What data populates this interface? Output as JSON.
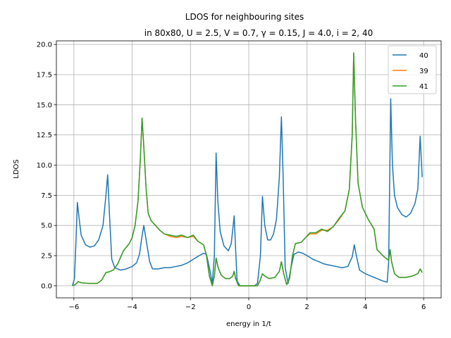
{
  "chart_data": {
    "type": "line",
    "title_line1": "LDOS for neighbouring sites",
    "title_line2": "in 80x80,  U = 2.5, V = 0.7, γ = 0.15, J = 4.0, i = 2, 40",
    "xlabel": "energy in 1/t",
    "ylabel": "LDOS",
    "xlim": [
      -6.6,
      6.6
    ],
    "ylim": [
      -1.0,
      20.3
    ],
    "grid": true,
    "legend_position": "top-right",
    "x_ticks": [
      -6,
      -4,
      -2,
      0,
      2,
      4,
      6
    ],
    "x_tick_labels": [
      "−6",
      "−4",
      "−2",
      "0",
      "2",
      "4",
      "6"
    ],
    "y_ticks": [
      0,
      2.5,
      5,
      7.5,
      10,
      12.5,
      15,
      17.5,
      20
    ],
    "y_tick_labels": [
      "0.0",
      "2.5",
      "5.0",
      "7.5",
      "10.0",
      "12.5",
      "15.0",
      "17.5",
      "20.0"
    ],
    "series": [
      {
        "name": "40",
        "color": "#1f77b4",
        "points": [
          [
            -6.05,
            0.0
          ],
          [
            -5.98,
            0.6
          ],
          [
            -5.93,
            3.5
          ],
          [
            -5.88,
            6.9
          ],
          [
            -5.82,
            5.6
          ],
          [
            -5.75,
            4.2
          ],
          [
            -5.6,
            3.4
          ],
          [
            -5.45,
            3.2
          ],
          [
            -5.3,
            3.3
          ],
          [
            -5.15,
            3.8
          ],
          [
            -5.0,
            5.0
          ],
          [
            -4.9,
            7.5
          ],
          [
            -4.84,
            9.2
          ],
          [
            -4.78,
            6.0
          ],
          [
            -4.7,
            2.2
          ],
          [
            -4.6,
            1.5
          ],
          [
            -4.4,
            1.3
          ],
          [
            -4.2,
            1.4
          ],
          [
            -4.0,
            1.6
          ],
          [
            -3.85,
            1.9
          ],
          [
            -3.75,
            2.6
          ],
          [
            -3.65,
            4.3
          ],
          [
            -3.6,
            5.0
          ],
          [
            -3.5,
            3.5
          ],
          [
            -3.4,
            2.0
          ],
          [
            -3.3,
            1.4
          ],
          [
            -3.1,
            1.4
          ],
          [
            -2.9,
            1.5
          ],
          [
            -2.7,
            1.5
          ],
          [
            -2.5,
            1.6
          ],
          [
            -2.3,
            1.7
          ],
          [
            -2.1,
            1.9
          ],
          [
            -1.9,
            2.2
          ],
          [
            -1.7,
            2.5
          ],
          [
            -1.55,
            2.7
          ],
          [
            -1.45,
            2.6
          ],
          [
            -1.35,
            1.5
          ],
          [
            -1.25,
            0.2
          ],
          [
            -1.18,
            2.5
          ],
          [
            -1.12,
            11.0
          ],
          [
            -1.06,
            7.0
          ],
          [
            -0.98,
            4.5
          ],
          [
            -0.85,
            3.3
          ],
          [
            -0.7,
            2.9
          ],
          [
            -0.6,
            3.5
          ],
          [
            -0.5,
            5.8
          ],
          [
            -0.45,
            3.0
          ],
          [
            -0.4,
            0.4
          ],
          [
            -0.3,
            0.0
          ],
          [
            0.2,
            0.0
          ],
          [
            0.3,
            0.2
          ],
          [
            0.4,
            2.5
          ],
          [
            0.47,
            7.4
          ],
          [
            0.55,
            5.0
          ],
          [
            0.65,
            3.8
          ],
          [
            0.75,
            3.8
          ],
          [
            0.85,
            4.3
          ],
          [
            0.95,
            5.5
          ],
          [
            1.05,
            9.0
          ],
          [
            1.12,
            14.0
          ],
          [
            1.18,
            9.0
          ],
          [
            1.25,
            1.5
          ],
          [
            1.35,
            0.2
          ],
          [
            1.45,
            1.5
          ],
          [
            1.55,
            2.6
          ],
          [
            1.7,
            2.8
          ],
          [
            1.85,
            2.7
          ],
          [
            2.0,
            2.5
          ],
          [
            2.2,
            2.2
          ],
          [
            2.4,
            2.0
          ],
          [
            2.6,
            1.8
          ],
          [
            2.8,
            1.7
          ],
          [
            3.0,
            1.6
          ],
          [
            3.2,
            1.5
          ],
          [
            3.4,
            1.6
          ],
          [
            3.55,
            2.4
          ],
          [
            3.62,
            3.4
          ],
          [
            3.7,
            2.4
          ],
          [
            3.8,
            1.3
          ],
          [
            4.0,
            1.0
          ],
          [
            4.2,
            0.8
          ],
          [
            4.4,
            0.6
          ],
          [
            4.6,
            0.4
          ],
          [
            4.75,
            0.3
          ],
          [
            4.8,
            2.0
          ],
          [
            4.87,
            15.5
          ],
          [
            4.93,
            10.0
          ],
          [
            5.0,
            7.5
          ],
          [
            5.1,
            6.5
          ],
          [
            5.25,
            5.9
          ],
          [
            5.4,
            5.7
          ],
          [
            5.55,
            6.0
          ],
          [
            5.7,
            6.8
          ],
          [
            5.8,
            8.0
          ],
          [
            5.88,
            12.4
          ],
          [
            5.95,
            9.0
          ]
        ]
      },
      {
        "name": "39",
        "color": "#ff7f0e",
        "points": [
          [
            -6.05,
            0.0
          ],
          [
            -5.95,
            0.1
          ],
          [
            -5.85,
            0.35
          ],
          [
            -5.75,
            0.25
          ],
          [
            -5.5,
            0.2
          ],
          [
            -5.2,
            0.2
          ],
          [
            -5.05,
            0.45
          ],
          [
            -4.9,
            1.1
          ],
          [
            -4.8,
            1.15
          ],
          [
            -4.65,
            1.3
          ],
          [
            -4.5,
            1.8
          ],
          [
            -4.3,
            2.9
          ],
          [
            -4.1,
            3.5
          ],
          [
            -4.0,
            4.0
          ],
          [
            -3.9,
            5.0
          ],
          [
            -3.8,
            7.0
          ],
          [
            -3.72,
            10.5
          ],
          [
            -3.66,
            13.9
          ],
          [
            -3.6,
            11.5
          ],
          [
            -3.52,
            8.0
          ],
          [
            -3.45,
            6.0
          ],
          [
            -3.35,
            5.4
          ],
          [
            -3.2,
            5.0
          ],
          [
            -3.05,
            4.6
          ],
          [
            -2.9,
            4.3
          ],
          [
            -2.7,
            4.1
          ],
          [
            -2.5,
            4.0
          ],
          [
            -2.3,
            4.1
          ],
          [
            -2.1,
            4.0
          ],
          [
            -1.9,
            4.1
          ],
          [
            -1.75,
            3.7
          ],
          [
            -1.55,
            3.4
          ],
          [
            -1.45,
            2.5
          ],
          [
            -1.35,
            0.8
          ],
          [
            -1.25,
            0.0
          ],
          [
            -1.18,
            0.8
          ],
          [
            -1.12,
            2.3
          ],
          [
            -1.05,
            1.5
          ],
          [
            -0.95,
            0.9
          ],
          [
            -0.8,
            0.6
          ],
          [
            -0.65,
            0.6
          ],
          [
            -0.55,
            0.8
          ],
          [
            -0.5,
            1.2
          ],
          [
            -0.45,
            0.6
          ],
          [
            -0.35,
            0.0
          ],
          [
            0.3,
            0.0
          ],
          [
            0.4,
            0.5
          ],
          [
            0.47,
            1.0
          ],
          [
            0.55,
            0.8
          ],
          [
            0.7,
            0.6
          ],
          [
            0.9,
            0.7
          ],
          [
            1.05,
            1.2
          ],
          [
            1.12,
            2.0
          ],
          [
            1.2,
            1.0
          ],
          [
            1.3,
            0.1
          ],
          [
            1.4,
            0.6
          ],
          [
            1.5,
            2.5
          ],
          [
            1.6,
            3.5
          ],
          [
            1.8,
            3.6
          ],
          [
            1.95,
            4.0
          ],
          [
            2.1,
            4.3
          ],
          [
            2.3,
            4.3
          ],
          [
            2.5,
            4.6
          ],
          [
            2.7,
            4.6
          ],
          [
            2.9,
            4.9
          ],
          [
            3.1,
            5.5
          ],
          [
            3.3,
            6.2
          ],
          [
            3.45,
            8.0
          ],
          [
            3.55,
            12.5
          ],
          [
            3.6,
            19.3
          ],
          [
            3.66,
            14.0
          ],
          [
            3.75,
            8.5
          ],
          [
            3.9,
            6.5
          ],
          [
            4.1,
            5.5
          ],
          [
            4.3,
            4.7
          ],
          [
            4.4,
            3.0
          ],
          [
            4.6,
            2.5
          ],
          [
            4.8,
            2.1
          ],
          [
            4.85,
            3.0
          ],
          [
            4.9,
            2.0
          ],
          [
            5.0,
            1.0
          ],
          [
            5.15,
            0.7
          ],
          [
            5.4,
            0.7
          ],
          [
            5.6,
            0.8
          ],
          [
            5.8,
            1.0
          ],
          [
            5.88,
            1.4
          ],
          [
            5.95,
            1.1
          ]
        ]
      },
      {
        "name": "41",
        "color": "#2ca02c",
        "points": [
          [
            -6.05,
            0.0
          ],
          [
            -5.95,
            0.1
          ],
          [
            -5.85,
            0.35
          ],
          [
            -5.75,
            0.25
          ],
          [
            -5.5,
            0.2
          ],
          [
            -5.2,
            0.2
          ],
          [
            -5.05,
            0.45
          ],
          [
            -4.9,
            1.1
          ],
          [
            -4.8,
            1.15
          ],
          [
            -4.65,
            1.3
          ],
          [
            -4.5,
            1.8
          ],
          [
            -4.3,
            2.9
          ],
          [
            -4.1,
            3.5
          ],
          [
            -4.0,
            4.0
          ],
          [
            -3.9,
            5.0
          ],
          [
            -3.8,
            7.0
          ],
          [
            -3.72,
            10.5
          ],
          [
            -3.66,
            13.9
          ],
          [
            -3.6,
            11.5
          ],
          [
            -3.52,
            8.0
          ],
          [
            -3.45,
            6.0
          ],
          [
            -3.35,
            5.4
          ],
          [
            -3.2,
            5.0
          ],
          [
            -3.05,
            4.6
          ],
          [
            -2.9,
            4.3
          ],
          [
            -2.7,
            4.2
          ],
          [
            -2.5,
            4.1
          ],
          [
            -2.3,
            4.2
          ],
          [
            -2.1,
            4.0
          ],
          [
            -1.9,
            4.2
          ],
          [
            -1.75,
            3.7
          ],
          [
            -1.55,
            3.4
          ],
          [
            -1.45,
            2.5
          ],
          [
            -1.35,
            0.8
          ],
          [
            -1.25,
            0.0
          ],
          [
            -1.18,
            0.8
          ],
          [
            -1.12,
            2.3
          ],
          [
            -1.05,
            1.5
          ],
          [
            -0.95,
            0.9
          ],
          [
            -0.8,
            0.6
          ],
          [
            -0.65,
            0.6
          ],
          [
            -0.55,
            0.8
          ],
          [
            -0.5,
            1.2
          ],
          [
            -0.45,
            0.6
          ],
          [
            -0.35,
            0.0
          ],
          [
            0.3,
            0.0
          ],
          [
            0.4,
            0.5
          ],
          [
            0.47,
            1.0
          ],
          [
            0.55,
            0.8
          ],
          [
            0.7,
            0.6
          ],
          [
            0.9,
            0.7
          ],
          [
            1.05,
            1.2
          ],
          [
            1.12,
            2.0
          ],
          [
            1.2,
            1.0
          ],
          [
            1.3,
            0.1
          ],
          [
            1.4,
            0.6
          ],
          [
            1.5,
            2.5
          ],
          [
            1.6,
            3.5
          ],
          [
            1.8,
            3.6
          ],
          [
            1.95,
            4.0
          ],
          [
            2.1,
            4.4
          ],
          [
            2.3,
            4.4
          ],
          [
            2.5,
            4.7
          ],
          [
            2.7,
            4.5
          ],
          [
            2.9,
            4.9
          ],
          [
            3.1,
            5.6
          ],
          [
            3.3,
            6.2
          ],
          [
            3.45,
            8.0
          ],
          [
            3.55,
            12.5
          ],
          [
            3.6,
            19.3
          ],
          [
            3.66,
            14.0
          ],
          [
            3.75,
            8.5
          ],
          [
            3.9,
            6.5
          ],
          [
            4.1,
            5.5
          ],
          [
            4.3,
            4.7
          ],
          [
            4.4,
            3.0
          ],
          [
            4.6,
            2.5
          ],
          [
            4.8,
            2.1
          ],
          [
            4.85,
            3.0
          ],
          [
            4.9,
            2.0
          ],
          [
            5.0,
            1.0
          ],
          [
            5.15,
            0.7
          ],
          [
            5.4,
            0.7
          ],
          [
            5.6,
            0.8
          ],
          [
            5.8,
            1.0
          ],
          [
            5.88,
            1.4
          ],
          [
            5.95,
            1.1
          ]
        ]
      }
    ]
  }
}
